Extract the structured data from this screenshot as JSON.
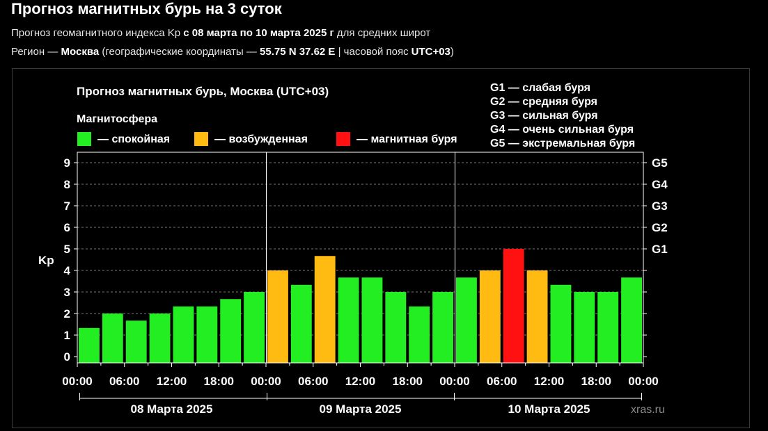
{
  "header": {
    "title": "Прогноз магнитных бурь на 3 суток",
    "line1_a": "Прогноз геомагнитного индекса Kp",
    "line1_b": "с 08 марта по 10 марта 2025 г",
    "line1_c": "для средних широт",
    "line2_a": "Регион —",
    "line2_b": "Москва",
    "line2_c": "(географические координаты —",
    "line2_d": "55.75 N 37.62 E",
    "line2_e": "| часовой пояс",
    "line2_f": "UTC+03",
    "line2_g": ")"
  },
  "chart_data": {
    "type": "bar",
    "title": "Прогноз магнитных бурь, Москва (UTC+03)",
    "ylabel": "Kp",
    "ylim": [
      0,
      9
    ],
    "yticks": [
      "0",
      "1",
      "2",
      "3",
      "4",
      "5",
      "6",
      "7",
      "8",
      "9"
    ],
    "right_ticks": [
      {
        "kp": 5,
        "label": "G1"
      },
      {
        "kp": 6,
        "label": "G2"
      },
      {
        "kp": 7,
        "label": "G3"
      },
      {
        "kp": 8,
        "label": "G4"
      },
      {
        "kp": 9,
        "label": "G5"
      }
    ],
    "xticks": [
      "00:00",
      "06:00",
      "12:00",
      "18:00",
      "00:00",
      "06:00",
      "12:00",
      "18:00",
      "00:00",
      "06:00",
      "12:00",
      "18:00",
      "00:00"
    ],
    "days": [
      "08 Марта 2025",
      "09 Марта 2025",
      "10 Марта 2025"
    ],
    "values": [
      1.33,
      2.0,
      1.67,
      2.0,
      2.33,
      2.33,
      2.67,
      3.0,
      4.0,
      3.33,
      4.67,
      3.67,
      3.67,
      3.0,
      2.33,
      3.0,
      3.67,
      4.0,
      5.0,
      4.0,
      3.33,
      3.0,
      3.0,
      3.67
    ],
    "levels": [
      "calm",
      "calm",
      "calm",
      "calm",
      "calm",
      "calm",
      "calm",
      "calm",
      "excited",
      "calm",
      "excited",
      "calm",
      "calm",
      "calm",
      "calm",
      "calm",
      "calm",
      "excited",
      "storm",
      "excited",
      "calm",
      "calm",
      "calm",
      "calm"
    ],
    "legend_title": "Магнитосфера",
    "legend": [
      {
        "key": "calm",
        "label": "— спокойная",
        "color": "#22ee22"
      },
      {
        "key": "excited",
        "label": "— возбужденная",
        "color": "#ffbb11"
      },
      {
        "key": "storm",
        "label": "— магнитная буря",
        "color": "#ff1111"
      }
    ],
    "g_scale": [
      "G1 — слабая буря",
      "G2 — средняя буря",
      "G3 — сильная буря",
      "G4 — очень сильная буря",
      "G5 — экстремальная буря"
    ],
    "watermark": "xras.ru"
  }
}
